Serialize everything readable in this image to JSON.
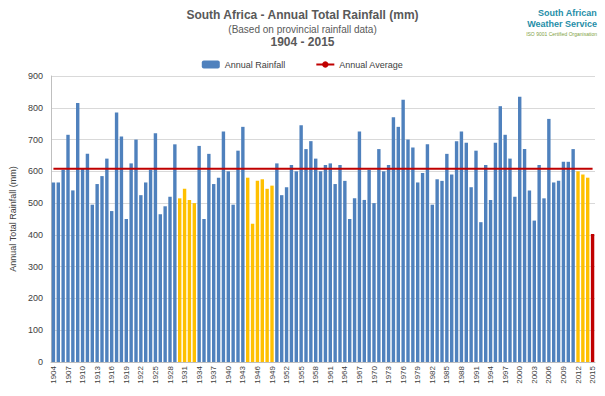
{
  "chart_data": {
    "type": "bar",
    "title": "South Africa - Annual Total Rainfall (mm)",
    "subtitle": "(Based on provincial rainfall data)",
    "annotations": [
      "1904 - 2015",
      "South African",
      "Weather Service",
      "ISO 9001 Certified Organisation"
    ],
    "y_label": "Annual Total Rainfall (mm)",
    "categories": [
      "1904",
      null,
      null,
      "1907",
      null,
      null,
      "1910",
      null,
      null,
      "1913",
      null,
      null,
      "1916",
      null,
      null,
      "1919",
      null,
      null,
      "1922",
      null,
      null,
      "1925",
      null,
      null,
      "1928",
      null,
      null,
      "1931",
      null,
      null,
      "1934",
      null,
      null,
      "1937",
      null,
      null,
      "1940",
      null,
      null,
      "1943",
      null,
      null,
      "1946",
      null,
      null,
      "1949",
      null,
      null,
      "1952",
      null,
      null,
      "1955",
      null,
      null,
      "1958",
      null,
      null,
      "1961",
      null,
      null,
      "1964",
      null,
      null,
      "1967",
      null,
      null,
      "1970",
      null,
      null,
      "1973",
      null,
      null,
      "1976",
      null,
      null,
      "1979",
      null,
      null,
      "1982",
      null,
      null,
      "1985",
      null,
      null,
      "1988",
      null,
      null,
      "1991",
      null,
      null,
      "1994",
      null,
      null,
      "1997",
      null,
      null,
      "2000",
      null,
      null,
      "2003",
      null,
      null,
      "2006",
      null,
      null,
      "2009",
      null,
      null,
      "2012",
      null,
      null,
      "2015"
    ],
    "series": [
      {
        "name": "Annual Rainfall",
        "type": "bar",
        "values": [
          565,
          565,
          605,
          715,
          540,
          815,
          610,
          655,
          495,
          560,
          585,
          640,
          475,
          785,
          710,
          450,
          625,
          700,
          525,
          565,
          605,
          720,
          465,
          490,
          520,
          685,
          515,
          545,
          510,
          500,
          680,
          450,
          655,
          560,
          580,
          725,
          600,
          495,
          665,
          740,
          580,
          435,
          570,
          575,
          545,
          555,
          625,
          525,
          550,
          620,
          600,
          745,
          670,
          695,
          640,
          600,
          620,
          625,
          560,
          620,
          570,
          450,
          515,
          725,
          510,
          605,
          500,
          670,
          600,
          620,
          770,
          740,
          825,
          700,
          675,
          565,
          595,
          685,
          495,
          575,
          570,
          655,
          590,
          695,
          725,
          690,
          550,
          665,
          440,
          620,
          510,
          690,
          805,
          715,
          640,
          520,
          835,
          670,
          540,
          445,
          620,
          515,
          765,
          565,
          570,
          630,
          630,
          670,
          600,
          590,
          580,
          403
        ],
        "colors": [
          "#4f81bd",
          "#4f81bd",
          "#4f81bd",
          "#4f81bd",
          "#4f81bd",
          "#4f81bd",
          "#4f81bd",
          "#4f81bd",
          "#4f81bd",
          "#4f81bd",
          "#4f81bd",
          "#4f81bd",
          "#4f81bd",
          "#4f81bd",
          "#4f81bd",
          "#4f81bd",
          "#4f81bd",
          "#4f81bd",
          "#4f81bd",
          "#4f81bd",
          "#4f81bd",
          "#4f81bd",
          "#4f81bd",
          "#4f81bd",
          "#4f81bd",
          "#4f81bd",
          "#ffc000",
          "#ffc000",
          "#ffc000",
          "#ffc000",
          "#4f81bd",
          "#4f81bd",
          "#4f81bd",
          "#4f81bd",
          "#4f81bd",
          "#4f81bd",
          "#4f81bd",
          "#4f81bd",
          "#4f81bd",
          "#4f81bd",
          "#ffc000",
          "#ffc000",
          "#ffc000",
          "#ffc000",
          "#ffc000",
          "#ffc000",
          "#4f81bd",
          "#4f81bd",
          "#4f81bd",
          "#4f81bd",
          "#4f81bd",
          "#4f81bd",
          "#4f81bd",
          "#4f81bd",
          "#4f81bd",
          "#4f81bd",
          "#4f81bd",
          "#4f81bd",
          "#4f81bd",
          "#4f81bd",
          "#4f81bd",
          "#4f81bd",
          "#4f81bd",
          "#4f81bd",
          "#4f81bd",
          "#4f81bd",
          "#4f81bd",
          "#4f81bd",
          "#4f81bd",
          "#4f81bd",
          "#4f81bd",
          "#4f81bd",
          "#4f81bd",
          "#4f81bd",
          "#4f81bd",
          "#4f81bd",
          "#4f81bd",
          "#4f81bd",
          "#4f81bd",
          "#4f81bd",
          "#4f81bd",
          "#4f81bd",
          "#4f81bd",
          "#4f81bd",
          "#4f81bd",
          "#4f81bd",
          "#4f81bd",
          "#4f81bd",
          "#4f81bd",
          "#4f81bd",
          "#4f81bd",
          "#4f81bd",
          "#4f81bd",
          "#4f81bd",
          "#4f81bd",
          "#4f81bd",
          "#4f81bd",
          "#4f81bd",
          "#4f81bd",
          "#4f81bd",
          "#4f81bd",
          "#4f81bd",
          "#4f81bd",
          "#4f81bd",
          "#4f81bd",
          "#4f81bd",
          "#4f81bd",
          "#4f81bd",
          "#ffc000",
          "#ffc000",
          "#ffc000",
          "#c00000"
        ],
        "color": "#4f81bd"
      },
      {
        "name": "Annual Average",
        "type": "line",
        "color": "#c00000",
        "values": [
          608,
          608,
          608,
          608,
          608,
          608,
          608,
          608,
          608,
          608,
          608,
          608,
          608,
          608,
          608,
          608,
          608,
          608,
          608,
          608,
          608,
          608,
          608,
          608,
          608,
          608,
          608,
          608,
          608,
          608,
          608,
          608,
          608,
          608,
          608,
          608,
          608,
          608,
          608,
          608,
          608,
          608,
          608,
          608,
          608,
          608,
          608,
          608,
          608,
          608,
          608,
          608,
          608,
          608,
          608,
          608,
          608,
          608,
          608,
          608,
          608,
          608,
          608,
          608,
          608,
          608,
          608,
          608,
          608,
          608,
          608,
          608,
          608,
          608,
          608,
          608,
          608,
          608,
          608,
          608,
          608,
          608,
          608,
          608,
          608,
          608,
          608,
          608,
          608,
          608,
          608,
          608,
          608,
          608,
          608,
          608,
          608,
          608,
          608,
          608,
          608,
          608,
          608,
          608,
          608,
          608,
          608,
          608,
          608,
          608,
          608,
          608
        ]
      }
    ],
    "ylim": [
      0,
      900
    ],
    "yticks": [
      0,
      100,
      200,
      300,
      400,
      500,
      600,
      700,
      800,
      900
    ],
    "grid": true,
    "legend": "top",
    "data_labels": false
  }
}
